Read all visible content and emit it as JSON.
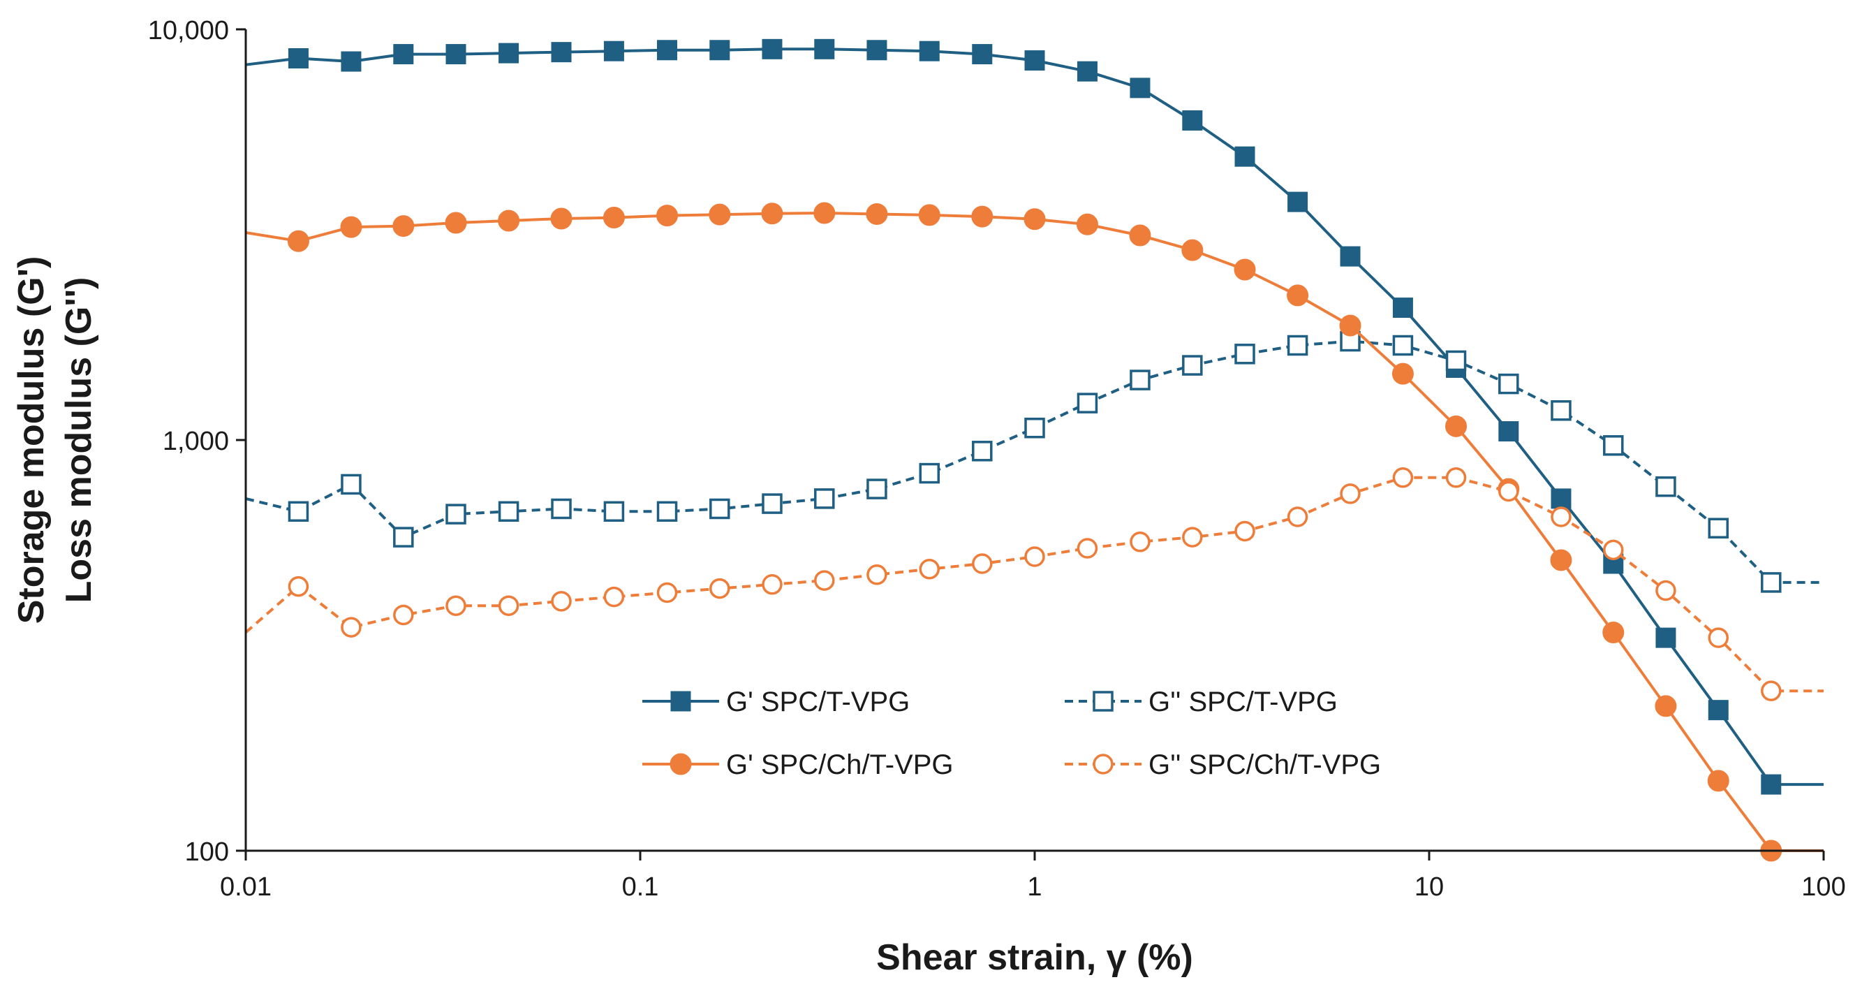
{
  "chart_data": {
    "type": "line",
    "title": "",
    "xlabel": "Shear strain, γ (%)",
    "ylabel_line1": "Storage modulus (G')",
    "ylabel_line2": "Loss modulus (G'')",
    "xscale": "log",
    "yscale": "log",
    "xlim": [
      0.01,
      100
    ],
    "ylim": [
      100,
      10000
    ],
    "x_ticks": [
      {
        "value": 0.01,
        "label": "0.01"
      },
      {
        "value": 0.1,
        "label": "0.1"
      },
      {
        "value": 1,
        "label": "1"
      },
      {
        "value": 10,
        "label": "10"
      },
      {
        "value": 100,
        "label": "100"
      }
    ],
    "y_ticks": [
      {
        "value": 100,
        "label": "100"
      },
      {
        "value": 1000,
        "label": "1,000"
      },
      {
        "value": 10000,
        "label": "10,000"
      }
    ],
    "grid": false,
    "legend_position": "lower-center",
    "x": [
      0.01,
      0.0136,
      0.0185,
      0.0251,
      0.0341,
      0.0464,
      0.0631,
      0.0858,
      0.117,
      0.159,
      0.216,
      0.293,
      0.398,
      0.541,
      0.736,
      1.0,
      1.36,
      1.85,
      2.51,
      3.41,
      4.64,
      6.31,
      8.58,
      11.7,
      15.9,
      21.6,
      29.3,
      39.8,
      54.1,
      73.6,
      100
    ],
    "series": [
      {
        "name": "G' SPC/T-VPG",
        "color": "#1f5f84",
        "line_style": "solid",
        "marker": "square-filled",
        "values": [
          8200,
          8500,
          8350,
          8700,
          8700,
          8750,
          8800,
          8850,
          8900,
          8900,
          8950,
          8950,
          8900,
          8850,
          8700,
          8400,
          7900,
          7200,
          6000,
          4900,
          3800,
          2800,
          2100,
          1500,
          1050,
          720,
          500,
          330,
          220,
          145,
          145
        ]
      },
      {
        "name": "G'' SPC/T-VPG",
        "color": "#1f5f84",
        "line_style": "dashed",
        "marker": "square-open",
        "values": [
          720,
          670,
          780,
          580,
          660,
          670,
          680,
          670,
          670,
          680,
          700,
          720,
          760,
          830,
          940,
          1070,
          1230,
          1400,
          1520,
          1620,
          1700,
          1740,
          1700,
          1560,
          1370,
          1180,
          970,
          770,
          610,
          450,
          450
        ]
      },
      {
        "name": "G' SPC/Ch/T-VPG",
        "color": "#ee7d3a",
        "line_style": "solid",
        "marker": "circle-filled",
        "values": [
          3200,
          3050,
          3300,
          3320,
          3380,
          3420,
          3460,
          3480,
          3520,
          3540,
          3560,
          3570,
          3550,
          3530,
          3500,
          3450,
          3350,
          3150,
          2900,
          2600,
          2250,
          1900,
          1450,
          1080,
          760,
          510,
          340,
          225,
          148,
          100,
          100
        ]
      },
      {
        "name": "G'' SPC/Ch/T-VPG",
        "color": "#ee7d3a",
        "line_style": "dashed",
        "marker": "circle-open",
        "values": [
          340,
          440,
          350,
          375,
          395,
          395,
          405,
          415,
          425,
          435,
          445,
          455,
          470,
          485,
          500,
          520,
          545,
          565,
          580,
          600,
          650,
          740,
          810,
          810,
          750,
          650,
          540,
          430,
          330,
          245,
          245
        ]
      }
    ]
  }
}
